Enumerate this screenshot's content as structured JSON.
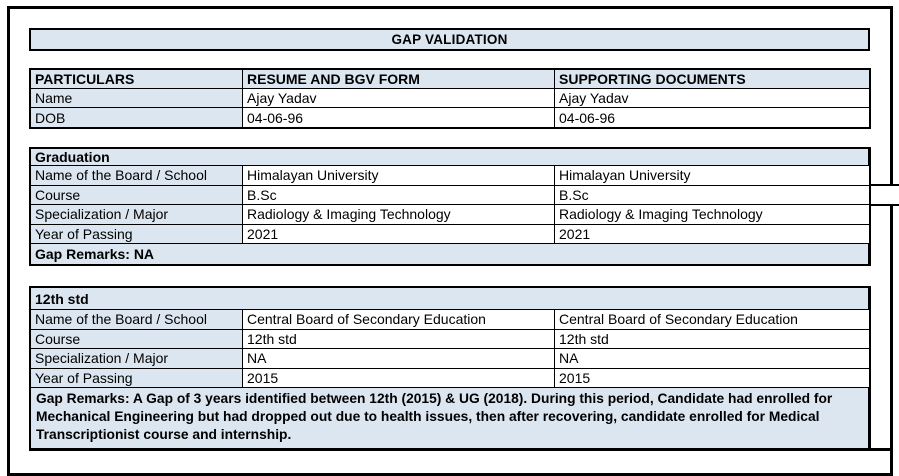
{
  "title": "GAP VALIDATION",
  "colors": {
    "section_fill": "#dce6f1",
    "border": "#000000",
    "background": "#ffffff"
  },
  "particulars": {
    "headers": {
      "col1": "PARTICULARS",
      "col2": "RESUME AND BGV FORM",
      "col3": "SUPPORTING DOCUMENTS"
    },
    "rows": [
      {
        "label": "Name",
        "resume": "Ajay Yadav",
        "supporting": "Ajay Yadav"
      },
      {
        "label": "DOB",
        "resume": "04-06-96",
        "supporting": "04-06-96"
      }
    ]
  },
  "sections": [
    {
      "heading": "Graduation",
      "rows": [
        {
          "label": "Name of the Board / School",
          "resume": "Himalayan University",
          "supporting": "Himalayan University"
        },
        {
          "label": "Course",
          "resume": "B.Sc",
          "supporting": "B.Sc"
        },
        {
          "label": "Specialization / Major",
          "resume": "Radiology & Imaging Technology",
          "supporting": "Radiology & Imaging Technology"
        },
        {
          "label": "Year of Passing",
          "resume": "2021",
          "supporting": "2021"
        }
      ],
      "gap_remarks": "Gap Remarks: NA"
    },
    {
      "heading": "12th std",
      "rows": [
        {
          "label": "Name of the Board / School",
          "resume": "Central Board of Secondary Education",
          "supporting": "Central Board of Secondary Education"
        },
        {
          "label": "Course",
          "resume": "12th std",
          "supporting": "12th std"
        },
        {
          "label": "Specialization / Major",
          "resume": "NA",
          "supporting": "NA"
        },
        {
          "label": "Year of Passing",
          "resume": "2015",
          "supporting": "2015"
        }
      ],
      "gap_remarks": "Gap Remarks: A Gap of 3 years identified between 12th (2015) & UG (2018). During this period, Candidate had enrolled for Mechanical Engineering but had dropped out due to health issues, then after recovering, candidate enrolled for Medical Transcriptionist course and internship."
    }
  ]
}
